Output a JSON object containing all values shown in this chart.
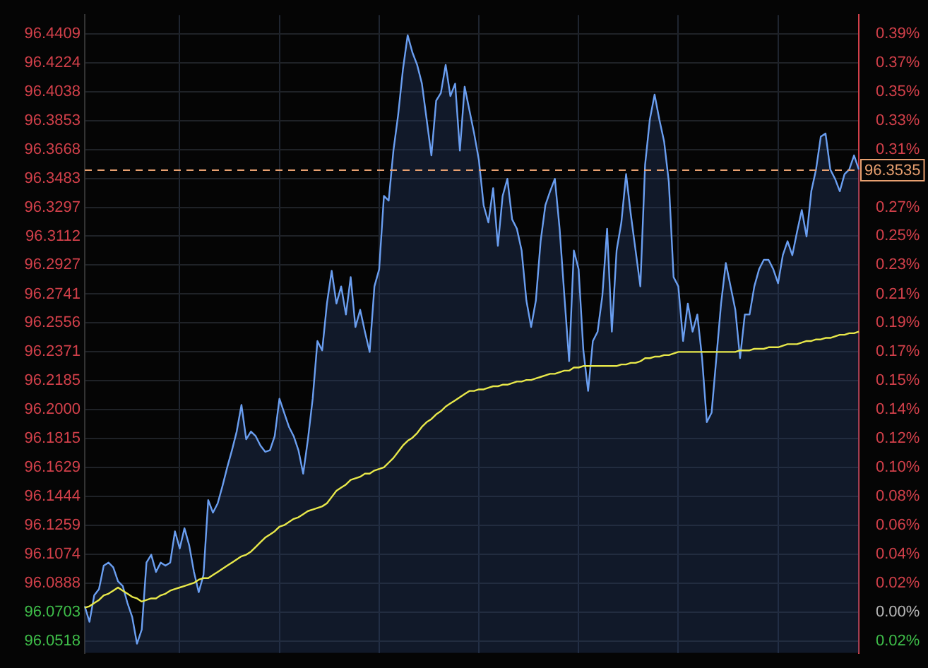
{
  "chart_data": {
    "type": "area",
    "categories": [
      null,
      null,
      null,
      null,
      null,
      null,
      null,
      null,
      null,
      null,
      null,
      null,
      null,
      null,
      null,
      null,
      null,
      null,
      null,
      null,
      null,
      null,
      null,
      null,
      null,
      null,
      null,
      null,
      null,
      null,
      null,
      null,
      null,
      null,
      null,
      null,
      null,
      null,
      null,
      null,
      null,
      null,
      null,
      null,
      null,
      null,
      null,
      null,
      null,
      null,
      null,
      null,
      null,
      null,
      null,
      null,
      null,
      null,
      null,
      null,
      null,
      null,
      null,
      null,
      null,
      null,
      null,
      null,
      null,
      null,
      null,
      null,
      null,
      null,
      null,
      null,
      null,
      null,
      null,
      null,
      null,
      null,
      null,
      null,
      null,
      null,
      null,
      null,
      null,
      null,
      null,
      null,
      null,
      null,
      null,
      null,
      null,
      null,
      null,
      null,
      null,
      null,
      null,
      null,
      null,
      null,
      null,
      null,
      null,
      null,
      null,
      null,
      null,
      null,
      null,
      null,
      null,
      null,
      null,
      null,
      null,
      null,
      null,
      null,
      null,
      null,
      null,
      null,
      null,
      null,
      null,
      null,
      null,
      null,
      null,
      null,
      null,
      null,
      null,
      null,
      null,
      null,
      null,
      null,
      null,
      null,
      null,
      null,
      null,
      null,
      null,
      null,
      null,
      null,
      null,
      null,
      null,
      null,
      null,
      null,
      null,
      null,
      null,
      null
    ],
    "series": [
      {
        "type": "area",
        "color": "#6a9ef0",
        "values": [
          96.074,
          96.064,
          96.081,
          96.085,
          96.1,
          96.102,
          96.099,
          96.09,
          96.087,
          96.076,
          96.067,
          96.05,
          96.059,
          96.102,
          96.107,
          96.096,
          96.102,
          96.1,
          96.102,
          96.122,
          96.111,
          96.124,
          96.113,
          96.096,
          96.083,
          96.094,
          96.142,
          96.134,
          96.14,
          96.151,
          96.163,
          96.174,
          96.186,
          96.203,
          96.181,
          96.186,
          96.183,
          96.177,
          96.173,
          96.174,
          96.183,
          96.207,
          96.198,
          96.189,
          96.183,
          96.174,
          96.159,
          96.181,
          96.207,
          96.244,
          96.238,
          96.268,
          96.289,
          96.268,
          96.279,
          96.261,
          96.285,
          96.253,
          96.264,
          96.25,
          96.237,
          96.279,
          96.29,
          96.337,
          96.334,
          96.366,
          96.389,
          96.418,
          96.44,
          96.429,
          96.421,
          96.409,
          96.386,
          96.363,
          96.398,
          96.403,
          96.421,
          96.401,
          96.409,
          96.366,
          96.407,
          96.392,
          96.377,
          96.36,
          96.331,
          96.32,
          96.342,
          96.305,
          96.337,
          96.348,
          96.322,
          96.316,
          96.302,
          96.27,
          96.253,
          96.27,
          96.308,
          96.331,
          96.34,
          96.348,
          96.316,
          96.273,
          96.231,
          96.302,
          96.29,
          96.238,
          96.212,
          96.244,
          96.25,
          96.273,
          96.316,
          96.25,
          96.302,
          96.32,
          96.351,
          96.325,
          96.302,
          96.279,
          96.357,
          96.386,
          96.402,
          96.386,
          96.372,
          96.346,
          96.285,
          96.279,
          96.244,
          96.268,
          96.25,
          96.261,
          96.233,
          96.192,
          96.198,
          96.233,
          96.268,
          96.294,
          96.279,
          96.264,
          96.233,
          96.261,
          96.261,
          96.279,
          96.29,
          96.296,
          96.296,
          96.29,
          96.281,
          96.299,
          96.308,
          96.299,
          96.314,
          96.328,
          96.311,
          96.34,
          96.354,
          96.375,
          96.377,
          96.354,
          96.348,
          96.34,
          96.351,
          96.354,
          96.363,
          96.354
        ]
      },
      {
        "type": "line",
        "color": "#e8e84a",
        "values": [
          96.073,
          96.074,
          96.076,
          96.078,
          96.081,
          96.082,
          96.084,
          96.086,
          96.084,
          96.082,
          96.08,
          96.079,
          96.077,
          96.078,
          96.079,
          96.079,
          96.081,
          96.082,
          96.084,
          96.085,
          96.086,
          96.087,
          96.088,
          96.089,
          96.091,
          96.092,
          96.092,
          96.094,
          96.096,
          96.098,
          96.1,
          96.102,
          96.104,
          96.106,
          96.107,
          96.109,
          96.112,
          96.115,
          96.118,
          96.12,
          96.122,
          96.125,
          96.126,
          96.128,
          96.13,
          96.131,
          96.133,
          96.135,
          96.136,
          96.137,
          96.138,
          96.14,
          96.144,
          96.148,
          96.15,
          96.152,
          96.155,
          96.156,
          96.157,
          96.159,
          96.159,
          96.161,
          96.162,
          96.163,
          96.166,
          96.169,
          96.173,
          96.177,
          96.18,
          96.182,
          96.185,
          96.189,
          96.192,
          96.194,
          96.197,
          96.199,
          96.202,
          96.204,
          96.206,
          96.208,
          96.21,
          96.212,
          96.212,
          96.213,
          96.213,
          96.214,
          96.215,
          96.215,
          96.216,
          96.216,
          96.217,
          96.218,
          96.218,
          96.219,
          96.219,
          96.22,
          96.221,
          96.222,
          96.223,
          96.223,
          96.224,
          96.225,
          96.225,
          96.227,
          96.227,
          96.228,
          96.228,
          96.228,
          96.228,
          96.228,
          96.228,
          96.228,
          96.228,
          96.229,
          96.229,
          96.23,
          96.23,
          96.231,
          96.233,
          96.233,
          96.234,
          96.234,
          96.235,
          96.235,
          96.236,
          96.237,
          96.237,
          96.237,
          96.237,
          96.237,
          96.237,
          96.237,
          96.237,
          96.237,
          96.237,
          96.237,
          96.237,
          96.237,
          96.238,
          96.238,
          96.238,
          96.239,
          96.239,
          96.239,
          96.24,
          96.24,
          96.24,
          96.241,
          96.242,
          96.242,
          96.242,
          96.243,
          96.244,
          96.244,
          96.245,
          96.245,
          96.246,
          96.246,
          96.247,
          96.248,
          96.248,
          96.249,
          96.249,
          96.25
        ]
      }
    ],
    "ylim": [
      96.044,
      96.453
    ],
    "yticks": [
      96.4409,
      96.4224,
      96.4038,
      96.3853,
      96.3668,
      96.3483,
      96.3297,
      96.3112,
      96.2927,
      96.2741,
      96.2556,
      96.2371,
      96.2185,
      {
        "value": 96.2,
        "label": "96.2000"
      },
      96.1815,
      96.1629,
      96.1444,
      96.1259,
      96.1074,
      96.0888,
      96.0703,
      96.0518
    ],
    "y2lim": [
      -0.0274,
      0.3984
    ],
    "y2ticks": [
      {
        "value": 0.3858,
        "label": "0.39%"
      },
      {
        "value": 0.3665,
        "label": "0.37%"
      },
      {
        "value": 0.3471,
        "label": "0.35%"
      },
      {
        "value": 0.3279,
        "label": "0.33%"
      },
      {
        "value": 0.3086,
        "label": "0.31%"
      },
      {
        "value": 0.27,
        "label": "0.27%"
      },
      {
        "value": 0.2508,
        "label": "0.25%"
      },
      {
        "value": 0.2315,
        "label": "0.23%"
      },
      {
        "value": 0.2121,
        "label": "0.21%"
      },
      {
        "value": 0.1929,
        "label": "0.19%"
      },
      {
        "value": 0.1736,
        "label": "0.17%"
      },
      {
        "value": 0.1543,
        "label": "0.15%"
      },
      {
        "value": 0.135,
        "label": "0.14%"
      },
      {
        "value": 0.1157,
        "label": "0.12%"
      },
      {
        "value": 0.0964,
        "label": "0.10%"
      },
      {
        "value": 0.0771,
        "label": "0.08%"
      },
      {
        "value": 0.0579,
        "label": "0.06%"
      },
      {
        "value": 0.0386,
        "label": "0.04%"
      },
      {
        "value": 0.0193,
        "label": "0.02%"
      },
      {
        "value": 0,
        "label": "0.00%"
      },
      {
        "value": -0.0193,
        "label": "0.02%"
      }
    ],
    "ref_lines": [
      {
        "axis": "y",
        "value": 96.3535,
        "label": "96.3535",
        "color": "#e8a070",
        "line_style": "dashed"
      }
    ],
    "grid": true,
    "legend": false,
    "tick_labels": "y",
    "marker": "none",
    "line_style": "solid"
  }
}
